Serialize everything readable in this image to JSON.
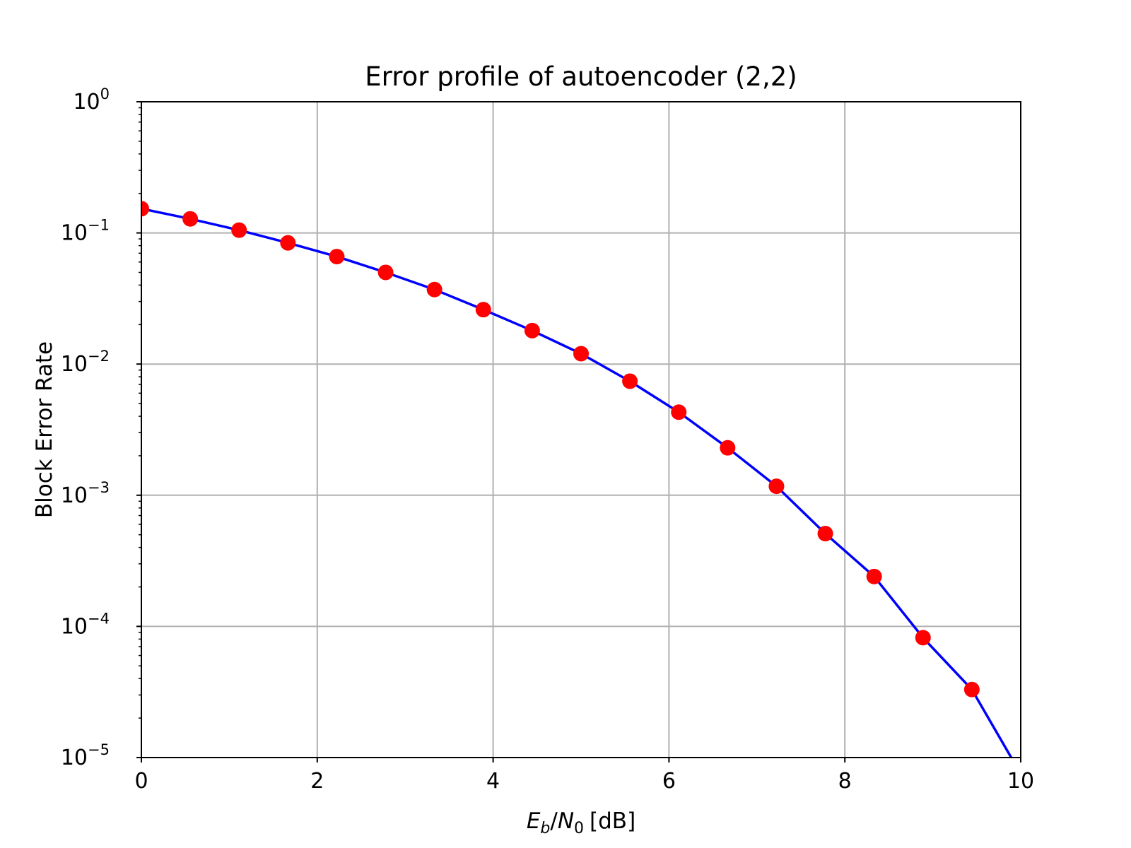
{
  "chart_data": {
    "type": "line",
    "title": "Error profile of autoencoder (2,2)",
    "xlabel": {
      "e": "E",
      "e_sub": "b",
      "slash": "/",
      "n": "N",
      "n_sub": "0",
      "unit": "[dB]"
    },
    "ylabel": "Block Error Rate",
    "x_ticks": [
      "0",
      "2",
      "4",
      "6",
      "8",
      "10"
    ],
    "y_ticks": [
      {
        "base": "10",
        "exp": "0"
      },
      {
        "base": "10",
        "exp": "−1"
      },
      {
        "base": "10",
        "exp": "−2"
      },
      {
        "base": "10",
        "exp": "−3"
      },
      {
        "base": "10",
        "exp": "−4"
      },
      {
        "base": "10",
        "exp": "−5"
      }
    ],
    "xlim": [
      0,
      10
    ],
    "ylim": [
      1e-05,
      1
    ],
    "yscale": "log",
    "grid": true,
    "series": [
      {
        "color": "#0000ff",
        "marker": "none",
        "x": [
          0,
          0.5556,
          1.1111,
          1.6667,
          2.2222,
          2.7778,
          3.3333,
          3.8889,
          4.4444,
          5.0,
          5.5556,
          6.1111,
          6.6667,
          7.2222,
          7.7778,
          8.3333,
          8.8889,
          9.4444,
          10.0
        ],
        "y": [
          0.153,
          0.128,
          0.105,
          0.084,
          0.066,
          0.05,
          0.037,
          0.026,
          0.018,
          0.012,
          0.0074,
          0.0043,
          0.0023,
          0.00117,
          0.00051,
          0.00024,
          8.2e-05,
          3.3e-05,
          7.5e-06
        ]
      },
      {
        "color": "#ff0000",
        "marker": "circle",
        "x": [
          0,
          0.5556,
          1.1111,
          1.6667,
          2.2222,
          2.7778,
          3.3333,
          3.8889,
          4.4444,
          5.0,
          5.5556,
          6.1111,
          6.6667,
          7.2222,
          7.7778,
          8.3333,
          8.8889,
          9.4444
        ],
        "y": [
          0.153,
          0.128,
          0.105,
          0.084,
          0.066,
          0.05,
          0.037,
          0.026,
          0.018,
          0.012,
          0.0074,
          0.0043,
          0.0023,
          0.00117,
          0.00051,
          0.00024,
          8.2e-05,
          3.3e-05
        ]
      }
    ]
  }
}
